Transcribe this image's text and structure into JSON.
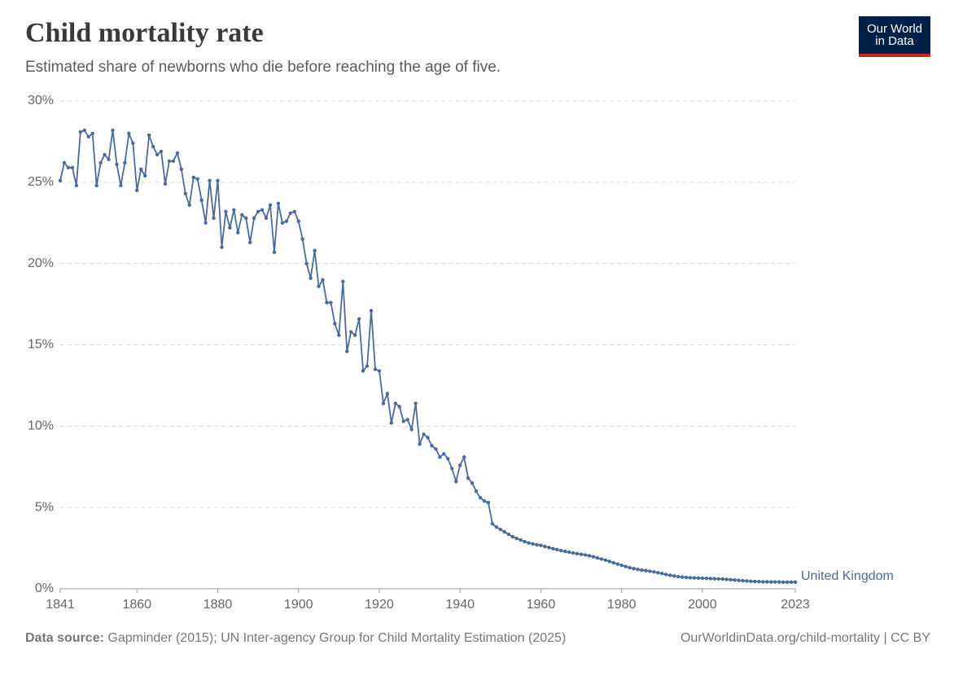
{
  "chart_data": {
    "type": "line",
    "title": "Child mortality rate",
    "subtitle": "Estimated share of newborns who die before reaching the age of five.",
    "source_label": "Data source:",
    "source": "Gapminder (2015); UN Inter-agency Group for Child Mortality Estimation (2025)",
    "credit": "OurWorldinData.org/child-mortality | CC BY",
    "logo": [
      "Our World",
      "in Data"
    ],
    "x": [
      1841,
      1842,
      1843,
      1844,
      1845,
      1846,
      1847,
      1848,
      1849,
      1850,
      1851,
      1852,
      1853,
      1854,
      1855,
      1856,
      1857,
      1858,
      1859,
      1860,
      1861,
      1862,
      1863,
      1864,
      1865,
      1866,
      1867,
      1868,
      1869,
      1870,
      1871,
      1872,
      1873,
      1874,
      1875,
      1876,
      1877,
      1878,
      1879,
      1880,
      1881,
      1882,
      1883,
      1884,
      1885,
      1886,
      1887,
      1888,
      1889,
      1890,
      1891,
      1892,
      1893,
      1894,
      1895,
      1896,
      1897,
      1898,
      1899,
      1900,
      1901,
      1902,
      1903,
      1904,
      1905,
      1906,
      1907,
      1908,
      1909,
      1910,
      1911,
      1912,
      1913,
      1914,
      1915,
      1916,
      1917,
      1918,
      1919,
      1920,
      1921,
      1922,
      1923,
      1924,
      1925,
      1926,
      1927,
      1928,
      1929,
      1930,
      1931,
      1932,
      1933,
      1934,
      1935,
      1936,
      1937,
      1938,
      1939,
      1940,
      1941,
      1942,
      1943,
      1944,
      1945,
      1946,
      1947,
      1948,
      1949,
      1950,
      1951,
      1952,
      1953,
      1954,
      1955,
      1956,
      1957,
      1958,
      1959,
      1960,
      1961,
      1962,
      1963,
      1964,
      1965,
      1966,
      1967,
      1968,
      1969,
      1970,
      1971,
      1972,
      1973,
      1974,
      1975,
      1976,
      1977,
      1978,
      1979,
      1980,
      1981,
      1982,
      1983,
      1984,
      1985,
      1986,
      1987,
      1988,
      1989,
      1990,
      1991,
      1992,
      1993,
      1994,
      1995,
      1996,
      1997,
      1998,
      1999,
      2000,
      2001,
      2002,
      2003,
      2004,
      2005,
      2006,
      2007,
      2008,
      2009,
      2010,
      2011,
      2012,
      2013,
      2014,
      2015,
      2016,
      2017,
      2018,
      2019,
      2020,
      2021,
      2022,
      2023
    ],
    "series": [
      {
        "name": "United Kingdom",
        "color": "#4c6a9c",
        "values": [
          25.1,
          26.2,
          25.9,
          25.9,
          24.8,
          28.1,
          28.2,
          27.8,
          28.0,
          24.8,
          26.2,
          26.7,
          26.4,
          28.2,
          26.1,
          24.8,
          26.2,
          28.0,
          27.4,
          24.5,
          25.8,
          25.4,
          27.9,
          27.2,
          26.7,
          26.9,
          24.9,
          26.3,
          26.3,
          26.8,
          25.8,
          24.3,
          23.6,
          25.3,
          25.2,
          23.9,
          22.5,
          25.1,
          22.8,
          25.1,
          21.0,
          23.2,
          22.2,
          23.3,
          21.9,
          23.0,
          22.8,
          21.3,
          22.8,
          23.2,
          23.3,
          22.8,
          23.6,
          20.7,
          23.7,
          22.5,
          22.6,
          23.1,
          23.2,
          22.6,
          21.5,
          20.0,
          19.1,
          20.8,
          18.6,
          19.0,
          17.6,
          17.6,
          16.3,
          15.6,
          18.9,
          14.6,
          15.8,
          15.6,
          16.6,
          13.4,
          13.7,
          17.1,
          13.5,
          13.4,
          11.4,
          12.0,
          10.2,
          11.4,
          11.2,
          10.3,
          10.4,
          9.8,
          11.4,
          8.9,
          9.5,
          9.3,
          8.8,
          8.6,
          8.1,
          8.3,
          8.0,
          7.4,
          6.6,
          7.6,
          8.1,
          6.8,
          6.5,
          6.0,
          5.6,
          5.4,
          5.3,
          4.0,
          3.8,
          3.65,
          3.5,
          3.35,
          3.2,
          3.1,
          3.0,
          2.9,
          2.82,
          2.76,
          2.71,
          2.67,
          2.6,
          2.54,
          2.47,
          2.41,
          2.35,
          2.3,
          2.25,
          2.2,
          2.16,
          2.12,
          2.08,
          2.03,
          1.97,
          1.9,
          1.83,
          1.76,
          1.68,
          1.6,
          1.52,
          1.44,
          1.37,
          1.3,
          1.24,
          1.19,
          1.15,
          1.12,
          1.08,
          1.04,
          0.99,
          0.94,
          0.88,
          0.83,
          0.79,
          0.75,
          0.72,
          0.7,
          0.68,
          0.67,
          0.66,
          0.65,
          0.64,
          0.63,
          0.62,
          0.61,
          0.6,
          0.58,
          0.56,
          0.54,
          0.52,
          0.5,
          0.48,
          0.46,
          0.45,
          0.44,
          0.43,
          0.43,
          0.42,
          0.42,
          0.42,
          0.41,
          0.41,
          0.41,
          0.41
        ]
      }
    ],
    "xlim": [
      1841,
      2023
    ],
    "xticks": [
      1841,
      1860,
      1880,
      1900,
      1920,
      1940,
      1960,
      1980,
      2000,
      2023
    ],
    "ylim": [
      0,
      30
    ],
    "yticks": [
      {
        "value": 0,
        "label": "0%"
      },
      {
        "value": 5,
        "label": "5%"
      },
      {
        "value": 10,
        "label": "10%"
      },
      {
        "value": 15,
        "label": "15%"
      },
      {
        "value": 20,
        "label": "20%"
      },
      {
        "value": 25,
        "label": "25%"
      },
      {
        "value": 30,
        "label": "30%"
      }
    ],
    "grid": true
  }
}
